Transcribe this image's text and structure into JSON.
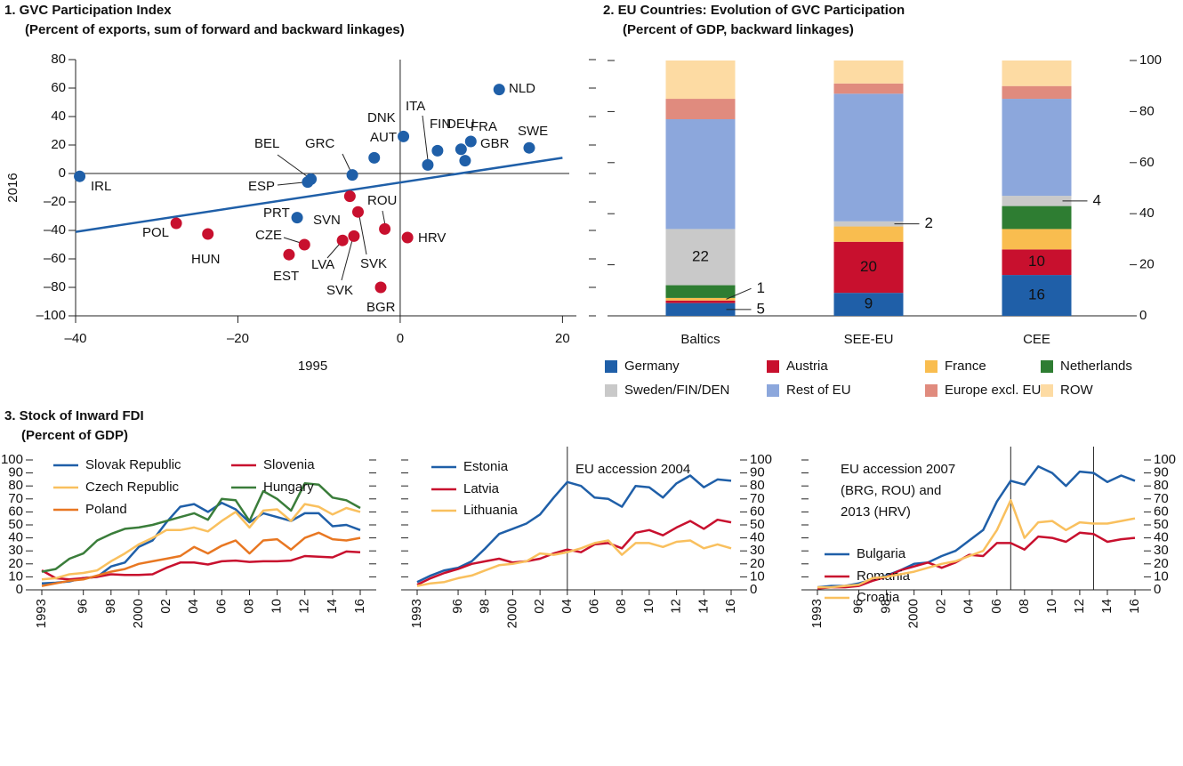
{
  "chart_data": [
    {
      "type": "scatter",
      "title": "1. GVC Participation Index",
      "subtitle": "(Percent of exports, sum of forward and backward linkages)",
      "x_label": "1995",
      "y_label": "2016",
      "xlim": [
        -40,
        25
      ],
      "ylim": [
        -100,
        80
      ],
      "xticks": [
        {
          "value": -40,
          "label": "–40"
        },
        {
          "value": -20,
          "label": "–20"
        },
        0,
        20
      ],
      "yticks": [
        {
          "value": -100,
          "label": "–100"
        },
        {
          "value": -80,
          "label": "–80"
        },
        {
          "value": -60,
          "label": "–60"
        },
        {
          "value": -40,
          "label": "–40"
        },
        {
          "value": -20,
          "label": "–20"
        },
        0,
        20,
        40,
        60,
        80
      ],
      "points": [
        {
          "label": "IRL",
          "x": -39.5,
          "y": -2,
          "color": "#1f5fa8"
        },
        {
          "label": "NLD",
          "x": 12.2,
          "y": 59,
          "color": "#1f5fa8"
        },
        {
          "label": "SWE",
          "x": 15.9,
          "y": 18,
          "color": "#1f5fa8"
        },
        {
          "label": "DEU",
          "x": 7.5,
          "y": 17,
          "color": "#1f5fa8"
        },
        {
          "label": "FRA",
          "x": 8.7,
          "y": 22.5,
          "color": "#1f5fa8"
        },
        {
          "label": "GBR",
          "x": 8,
          "y": 9,
          "color": "#1f5fa8"
        },
        {
          "label": "ITA",
          "x": 3.4,
          "y": 6,
          "color": "#1f5fa8"
        },
        {
          "label": "FIN",
          "x": 4.6,
          "y": 16,
          "color": "#1f5fa8"
        },
        {
          "label": "DNK",
          "x": 0.4,
          "y": 26,
          "color": "#1f5fa8"
        },
        {
          "label": "AUT",
          "x": -3.2,
          "y": 11,
          "color": "#1f5fa8"
        },
        {
          "label": "GRC",
          "x": -5.9,
          "y": -1,
          "color": "#1f5fa8"
        },
        {
          "label": "BEL",
          "x": -11,
          "y": -4,
          "color": "#1f5fa8"
        },
        {
          "label": "ESP",
          "x": -11.4,
          "y": -6,
          "color": "#1f5fa8"
        },
        {
          "label": "PRT",
          "x": -12.7,
          "y": -31,
          "color": "#1f5fa8"
        },
        {
          "label": "POL",
          "x": -27.6,
          "y": -35,
          "color": "#c8102e"
        },
        {
          "label": "HUN",
          "x": -23.7,
          "y": -42.5,
          "color": "#c8102e"
        },
        {
          "label": "CZE",
          "x": -11.8,
          "y": -50,
          "color": "#c8102e"
        },
        {
          "label": "EST",
          "x": -13.7,
          "y": -57,
          "color": "#c8102e"
        },
        {
          "label": "LVA",
          "x": -7.1,
          "y": -47,
          "color": "#c8102e"
        },
        {
          "label": "SVN",
          "x": -6.2,
          "y": -16,
          "color": "#c8102e"
        },
        {
          "label": "SVK",
          "x": -5.2,
          "y": -27,
          "color": "#c8102e"
        },
        {
          "label": "ROU",
          "x": -1.9,
          "y": -39,
          "color": "#c8102e"
        },
        {
          "label": "HRV",
          "x": 0.9,
          "y": -45,
          "color": "#c8102e"
        },
        {
          "label": "BGR",
          "x": -2.4,
          "y": -80,
          "color": "#c8102e"
        },
        {
          "label": "SVK",
          "x": -5.7,
          "y": -44,
          "color": "#c8102e"
        }
      ],
      "trendline": {
        "x": [
          -40,
          20
        ],
        "y": [
          -41,
          11
        ],
        "color": "#1f5fa8"
      }
    },
    {
      "type": "stacked_bar",
      "title": "2. EU Countries: Evolution of GVC Participation",
      "subtitle": "(Percent of GDP, backward linkages)",
      "categories": [
        "Baltics",
        "SEE-EU",
        "CEE"
      ],
      "ylim": [
        0,
        100
      ],
      "yticks": [
        0,
        20,
        40,
        60,
        80,
        100
      ],
      "series": [
        {
          "name": "Germany",
          "color": "#1f5fa8",
          "values": [
            5,
            9,
            16
          ]
        },
        {
          "name": "Austria",
          "color": "#c8102e",
          "values": [
            1,
            20,
            10
          ]
        },
        {
          "name": "France",
          "color": "#f9bd4f",
          "values": [
            1,
            6,
            8
          ]
        },
        {
          "name": "Netherlands",
          "color": "#2e7d32",
          "values": [
            5,
            0,
            9
          ]
        },
        {
          "name": "Sweden/FIN/DEN",
          "color": "#c9c9c9",
          "values": [
            22,
            2,
            4
          ]
        },
        {
          "name": "Rest of EU",
          "color": "#8ca7dc",
          "values": [
            43,
            50,
            38
          ]
        },
        {
          "name": "Europe excl. EU",
          "color": "#e08b7e",
          "values": [
            8,
            4,
            5
          ]
        },
        {
          "name": "ROW",
          "color": "#fddba3",
          "values": [
            15,
            9,
            10
          ]
        }
      ]
    },
    {
      "type": "line",
      "title": "3. Stock of Inward FDI",
      "subtitle": "(Percent of GDP)",
      "x": [
        1993,
        1994,
        1995,
        1996,
        1997,
        1998,
        1999,
        2000,
        2001,
        2002,
        2003,
        2004,
        2005,
        2006,
        2007,
        2008,
        2009,
        2010,
        2011,
        2012,
        2013,
        2014,
        2015,
        2016
      ],
      "xlim": [
        1993,
        2016
      ],
      "xticks": [
        1993,
        {
          "value": 1996,
          "label": "96"
        },
        {
          "value": 1998,
          "label": "98"
        },
        2000,
        {
          "value": 2002,
          "label": "02"
        },
        {
          "value": 2004,
          "label": "04"
        },
        {
          "value": 2006,
          "label": "06"
        },
        {
          "value": 2008,
          "label": "08"
        },
        {
          "value": 2010,
          "label": "10"
        },
        {
          "value": 2012,
          "label": "12"
        },
        {
          "value": 2014,
          "label": "14"
        },
        {
          "value": 2016,
          "label": "16"
        }
      ],
      "ylim": [
        0,
        100
      ],
      "yticks": [
        0,
        10,
        20,
        30,
        40,
        50,
        60,
        70,
        80,
        90,
        100
      ],
      "series": [
        {
          "name": "Slovak Republic",
          "color": "#1f5fa8",
          "values": [
            5,
            5.5,
            6.5,
            9,
            10,
            18,
            21,
            33,
            38,
            52,
            64,
            66,
            60,
            67,
            62,
            52,
            59,
            56,
            53,
            59,
            59,
            49,
            50,
            46
          ]
        },
        {
          "name": "Slovenia",
          "color": "#c8102e",
          "values": [
            15,
            9,
            8,
            9,
            10,
            12,
            11.5,
            11.5,
            12,
            17,
            21,
            21,
            19.5,
            22,
            22.5,
            21.5,
            22,
            22,
            22.5,
            26,
            25.5,
            25,
            29.5,
            29
          ]
        },
        {
          "name": "Czech Republic",
          "color": "#f9c05e",
          "values": [
            8,
            9,
            12,
            13,
            15,
            22,
            28,
            35,
            40,
            46,
            46,
            48,
            45,
            53,
            60,
            48,
            61,
            62,
            53,
            66,
            64,
            58,
            63,
            60
          ]
        },
        {
          "name": "Hungary",
          "color": "#3a7d3a",
          "values": [
            14,
            16,
            24,
            28,
            38,
            43,
            47,
            48,
            50,
            53,
            56,
            59,
            54,
            70,
            69,
            53,
            76,
            70,
            61,
            82,
            81,
            71,
            69,
            63
          ]
        },
        {
          "name": "Poland",
          "color": "#e87722",
          "values": [
            3,
            5,
            7,
            8,
            11,
            14,
            16,
            20,
            22,
            24,
            26,
            33,
            28,
            34,
            38,
            28,
            38,
            39,
            31,
            40,
            44,
            39,
            38,
            40
          ]
        }
      ]
    },
    {
      "type": "line",
      "x": [
        1993,
        1994,
        1995,
        1996,
        1997,
        1998,
        1999,
        2000,
        2001,
        2002,
        2003,
        2004,
        2005,
        2006,
        2007,
        2008,
        2009,
        2010,
        2011,
        2012,
        2013,
        2014,
        2015,
        2016
      ],
      "xlim": [
        1993,
        2016
      ],
      "xticks": [
        1993,
        {
          "value": 1996,
          "label": "96"
        },
        {
          "value": 1998,
          "label": "98"
        },
        2000,
        {
          "value": 2002,
          "label": "02"
        },
        {
          "value": 2004,
          "label": "04"
        },
        {
          "value": 2006,
          "label": "06"
        },
        {
          "value": 2008,
          "label": "08"
        },
        {
          "value": 2010,
          "label": "10"
        },
        {
          "value": 2012,
          "label": "12"
        },
        {
          "value": 2014,
          "label": "14"
        },
        {
          "value": 2016,
          "label": "16"
        }
      ],
      "ylim": [
        0,
        100
      ],
      "yticks": [
        0,
        10,
        20,
        30,
        40,
        50,
        60,
        70,
        80,
        90,
        100
      ],
      "annotation": [
        "EU accession 2004"
      ],
      "vlines": [
        2004
      ],
      "series": [
        {
          "name": "Estonia",
          "color": "#1f5fa8",
          "values": [
            6,
            11,
            15,
            17,
            22,
            32,
            43,
            47,
            51,
            58,
            71,
            83,
            80,
            71,
            70,
            64,
            80,
            79,
            71,
            82,
            88,
            79,
            85,
            84
          ]
        },
        {
          "name": "Latvia",
          "color": "#c8102e",
          "values": [
            4,
            9,
            13,
            16,
            20,
            22,
            24,
            21,
            22,
            24,
            28,
            31,
            29,
            35,
            36,
            32,
            44,
            46,
            42,
            48,
            53,
            47,
            54,
            52
          ]
        },
        {
          "name": "Lithuania",
          "color": "#f9c05e",
          "values": [
            3,
            5,
            6,
            9,
            11,
            15,
            19,
            20,
            22,
            28,
            27,
            29,
            32,
            36,
            38,
            27,
            36,
            36,
            33,
            37,
            38,
            32,
            35,
            32
          ]
        }
      ]
    },
    {
      "type": "line",
      "x": [
        1993,
        1994,
        1995,
        1996,
        1997,
        1998,
        1999,
        2000,
        2001,
        2002,
        2003,
        2004,
        2005,
        2006,
        2007,
        2008,
        2009,
        2010,
        2011,
        2012,
        2013,
        2014,
        2015,
        2016
      ],
      "xlim": [
        1993,
        2016
      ],
      "xticks": [
        1993,
        {
          "value": 1996,
          "label": "96"
        },
        {
          "value": 1998,
          "label": "98"
        },
        2000,
        {
          "value": 2002,
          "label": "02"
        },
        {
          "value": 2004,
          "label": "04"
        },
        {
          "value": 2006,
          "label": "06"
        },
        {
          "value": 2008,
          "label": "08"
        },
        {
          "value": 2010,
          "label": "10"
        },
        {
          "value": 2012,
          "label": "12"
        },
        {
          "value": 2014,
          "label": "14"
        },
        {
          "value": 2016,
          "label": "16"
        }
      ],
      "ylim": [
        0,
        100
      ],
      "yticks": [
        0,
        10,
        20,
        30,
        40,
        50,
        60,
        70,
        80,
        90,
        100
      ],
      "annotation": [
        "EU accession 2007",
        "(BRG, ROU) and",
        "2013 (HRV)"
      ],
      "vlines": [
        2007,
        2013
      ],
      "series": [
        {
          "name": "Bulgaria",
          "color": "#1f5fa8",
          "values": [
            2,
            3,
            3,
            5,
            8,
            11,
            15,
            20,
            21,
            26,
            30,
            38,
            46,
            68,
            84,
            81,
            95,
            90,
            80,
            91,
            90,
            83,
            88,
            84
          ]
        },
        {
          "name": "Romania",
          "color": "#c8102e",
          "values": [
            1,
            2,
            2,
            3,
            7,
            10,
            15,
            18,
            21,
            17,
            21,
            27,
            26,
            36,
            36,
            31,
            41,
            40,
            37,
            44,
            43,
            37,
            39,
            40
          ]
        },
        {
          "name": "Croatia",
          "color": "#f9c05e",
          "values": [
            2,
            2,
            3,
            4,
            9,
            10,
            12,
            14,
            17,
            20,
            22,
            26,
            30,
            46,
            69,
            40,
            52,
            53,
            46,
            52,
            51,
            51,
            53,
            55
          ]
        }
      ]
    }
  ]
}
